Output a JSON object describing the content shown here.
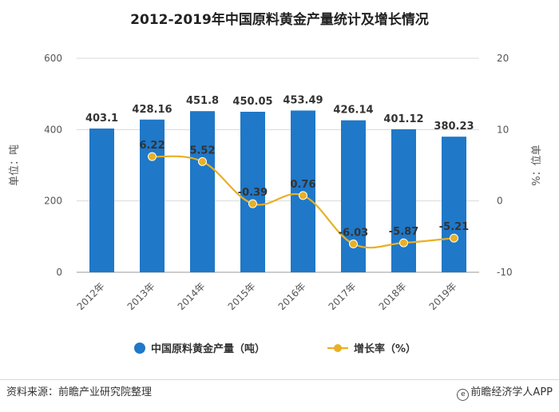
{
  "chart_data": {
    "type": "bar",
    "title": "2012-2019年中国原料黄金产量统计及增长情况",
    "categories": [
      "2012年",
      "2013年",
      "2014年",
      "2015年",
      "2016年",
      "2017年",
      "2018年",
      "2019年"
    ],
    "series": [
      {
        "name": "中国原料黄金产量（吨）",
        "type": "bar",
        "axis": "left",
        "color": "#1f78c8",
        "values": [
          403.1,
          428.16,
          451.8,
          450.05,
          453.49,
          426.14,
          401.12,
          380.23
        ]
      },
      {
        "name": "增长率（%）",
        "type": "line",
        "axis": "right",
        "color": "#e8b025",
        "values": [
          null,
          6.22,
          5.52,
          -0.39,
          0.76,
          -6.03,
          -5.87,
          -5.21
        ]
      }
    ],
    "ylabel": "单位：吨",
    "y2label": "%：位单",
    "ylim": [
      0,
      600
    ],
    "yticks": [
      0,
      200,
      400,
      600
    ],
    "y2lim": [
      -10,
      20
    ],
    "y2ticks": [
      -10,
      0,
      10,
      20
    ],
    "grid": true,
    "legend_position": "bottom"
  },
  "footer": {
    "source": "资料来源：前瞻产业研究院整理",
    "brand": "前瞻经济学人APP",
    "brand_icon": "e-icon"
  }
}
